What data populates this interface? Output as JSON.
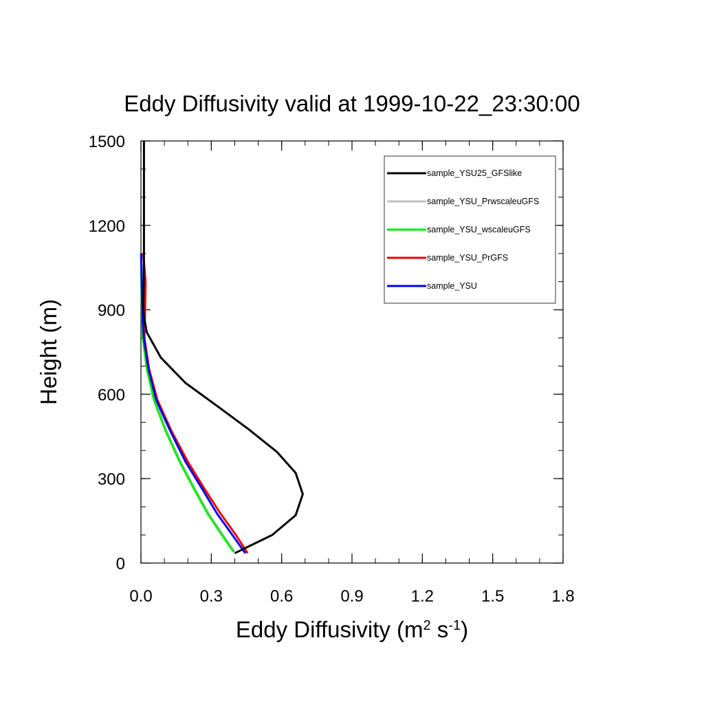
{
  "chart_data": {
    "type": "line",
    "title": "Eddy Diffusivity valid at 1999-10-22_23:30:00",
    "xlabel": {
      "base": "Eddy Diffusivity (m",
      "sup1": "2",
      "mid": " s",
      "sup2": "-1",
      "end": ")"
    },
    "ylabel": "Height (m)",
    "xlim": [
      0.0,
      1.8
    ],
    "ylim": [
      0,
      1500
    ],
    "xticks": [
      0.0,
      0.3,
      0.6,
      0.9,
      1.2,
      1.5,
      1.8
    ],
    "xtick_labels": [
      "0.0",
      "0.3",
      "0.6",
      "0.9",
      "1.2",
      "1.5",
      "1.8"
    ],
    "yticks": [
      0,
      300,
      600,
      900,
      1200,
      1500
    ],
    "ytick_labels": [
      "0",
      "300",
      "600",
      "900",
      "1200",
      "1500"
    ],
    "grid": false,
    "legend_position": "top-right",
    "series": [
      {
        "name": "sample_YSU25_GFSlike",
        "color": "#000000",
        "points": [
          [
            0.4,
            35
          ],
          [
            0.56,
            100
          ],
          [
            0.66,
            170
          ],
          [
            0.69,
            245
          ],
          [
            0.66,
            320
          ],
          [
            0.58,
            395
          ],
          [
            0.46,
            475
          ],
          [
            0.33,
            555
          ],
          [
            0.19,
            640
          ],
          [
            0.085,
            730
          ],
          [
            0.025,
            820
          ],
          [
            0.012,
            880
          ],
          [
            0.01,
            925
          ],
          [
            0.012,
            1000
          ],
          [
            0.013,
            1100
          ],
          [
            0.013,
            1200
          ],
          [
            0.013,
            1300
          ],
          [
            0.013,
            1400
          ],
          [
            0.013,
            1500
          ]
        ]
      },
      {
        "name": "sample_YSU_PrwscaleuGFS",
        "color": "#c0c0c0",
        "points": [
          [
            0.4,
            40
          ],
          [
            0.35,
            100
          ],
          [
            0.29,
            175
          ],
          [
            0.23,
            265
          ],
          [
            0.17,
            360
          ],
          [
            0.11,
            470
          ],
          [
            0.06,
            580
          ],
          [
            0.03,
            690
          ],
          [
            0.01,
            800
          ],
          [
            0.005,
            900
          ],
          [
            0.002,
            1000
          ],
          [
            0.001,
            1100
          ]
        ]
      },
      {
        "name": "sample_YSU_wscaleuGFS",
        "color": "#00ee00",
        "points": [
          [
            0.395,
            40
          ],
          [
            0.345,
            100
          ],
          [
            0.285,
            175
          ],
          [
            0.225,
            265
          ],
          [
            0.165,
            360
          ],
          [
            0.105,
            470
          ],
          [
            0.055,
            580
          ],
          [
            0.025,
            690
          ],
          [
            0.008,
            800
          ],
          [
            0.004,
            900
          ],
          [
            0.002,
            1000
          ],
          [
            0.001,
            1100
          ]
        ]
      },
      {
        "name": "sample_YSU_PrGFS",
        "color": "#ee0000",
        "points": [
          [
            0.455,
            35
          ],
          [
            0.405,
            100
          ],
          [
            0.34,
            175
          ],
          [
            0.27,
            265
          ],
          [
            0.2,
            360
          ],
          [
            0.13,
            470
          ],
          [
            0.07,
            580
          ],
          [
            0.035,
            690
          ],
          [
            0.015,
            800
          ],
          [
            0.018,
            900
          ],
          [
            0.02,
            1000
          ],
          [
            0.015,
            1050
          ],
          [
            0.01,
            1100
          ]
        ]
      },
      {
        "name": "sample_YSU",
        "color": "#0000ee",
        "points": [
          [
            0.445,
            35
          ],
          [
            0.39,
            100
          ],
          [
            0.325,
            175
          ],
          [
            0.26,
            265
          ],
          [
            0.19,
            360
          ],
          [
            0.125,
            470
          ],
          [
            0.065,
            580
          ],
          [
            0.032,
            690
          ],
          [
            0.012,
            800
          ],
          [
            0.006,
            900
          ],
          [
            0.003,
            1000
          ],
          [
            0.001,
            1100
          ]
        ]
      }
    ]
  }
}
